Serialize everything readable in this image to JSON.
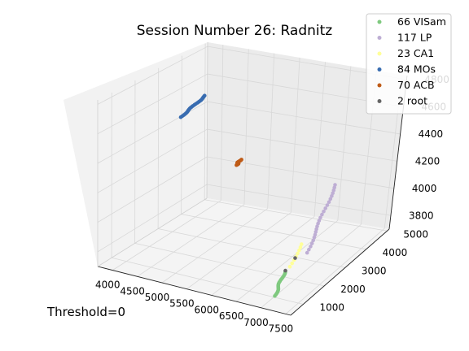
{
  "chart_data": {
    "type": "scatter",
    "projection": "3d",
    "title": "Session Number 26: Radnitz",
    "annotation": "Threshold=0",
    "xlabel": "",
    "ylabel": "",
    "zlabel": "",
    "xticks": [
      "4000",
      "4500",
      "5000",
      "5500",
      "6000",
      "6500",
      "7000",
      "7500"
    ],
    "yticks": [
      "1000",
      "2000",
      "3000",
      "4000",
      "5000"
    ],
    "zticks": [
      "3800",
      "4000",
      "4200",
      "4400",
      "4600",
      "4800"
    ],
    "xlim": [
      3700,
      7600
    ],
    "ylim": [
      400,
      5100
    ],
    "zlim": [
      3700,
      4830
    ],
    "grid": true,
    "legend_position": "top-right",
    "series": [
      {
        "name": "66 VISam",
        "color": "#7fc97f",
        "start": [
          7150,
          700,
          3760
        ],
        "end": [
          7150,
          1150,
          3880
        ],
        "count": 22
      },
      {
        "name": "117 LP",
        "color": "#beaed4",
        "start": [
          6800,
          3000,
          3750
        ],
        "end": [
          6800,
          4150,
          4100
        ],
        "count": 24
      },
      {
        "name": "23 CA1",
        "color": "#ffff99",
        "start": [
          6800,
          2200,
          3750
        ],
        "end": [
          6800,
          2700,
          3850
        ],
        "count": 8
      },
      {
        "name": "84 MOs",
        "color": "#386cb0",
        "start": [
          4150,
          3000,
          4520
        ],
        "end": [
          3880,
          4650,
          4500
        ],
        "count": 26
      },
      {
        "name": "70 ACB",
        "color": "#bf5b17",
        "start": [
          4400,
          4920,
          4000
        ],
        "end": [
          4400,
          5080,
          4020
        ],
        "count": 20
      },
      {
        "name": "2 root",
        "color": "#666666",
        "points": [
          [
            7030,
            1900,
            3870
          ],
          [
            7120,
            1250,
            3870
          ]
        ]
      }
    ]
  }
}
